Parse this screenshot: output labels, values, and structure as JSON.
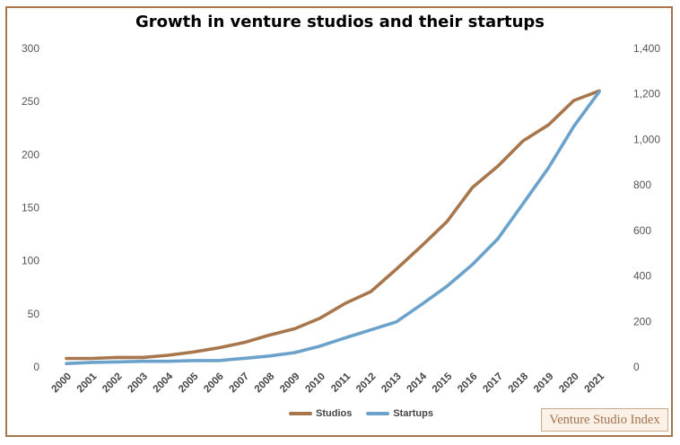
{
  "chart_data": {
    "type": "line",
    "title": "Growth in venture studios and their startups",
    "categories": [
      "2000",
      "2001",
      "2002",
      "2003",
      "2004",
      "2005",
      "2006",
      "2007",
      "2008",
      "2009",
      "2010",
      "2011",
      "2012",
      "2013",
      "2014",
      "2015",
      "2016",
      "2017",
      "2018",
      "2019",
      "2020",
      "2021"
    ],
    "series": [
      {
        "name": "Studios",
        "axis": "left",
        "color": "#a8764c",
        "values": [
          8,
          8,
          9,
          9,
          11,
          14,
          18,
          23,
          30,
          36,
          46,
          60,
          71,
          92,
          114,
          137,
          169,
          189,
          213,
          228,
          251,
          260
        ]
      },
      {
        "name": "Startups",
        "axis": "right",
        "color": "#6ba2cc",
        "values": [
          15,
          20,
          22,
          25,
          25,
          28,
          28,
          38,
          48,
          63,
          92,
          128,
          163,
          198,
          275,
          355,
          450,
          563,
          718,
          875,
          1058,
          1210
        ]
      }
    ],
    "y_left": {
      "min": 0,
      "max": 300,
      "ticks": [
        "0",
        "50",
        "100",
        "150",
        "200",
        "250",
        "300"
      ]
    },
    "y_right": {
      "min": 0,
      "max": 1400,
      "ticks": [
        "0",
        "200",
        "400",
        "600",
        "800",
        "1,000",
        "1,200",
        "1,400"
      ]
    },
    "grid": false,
    "legend_position": "bottom"
  },
  "watermark": "Venture Studio Index"
}
